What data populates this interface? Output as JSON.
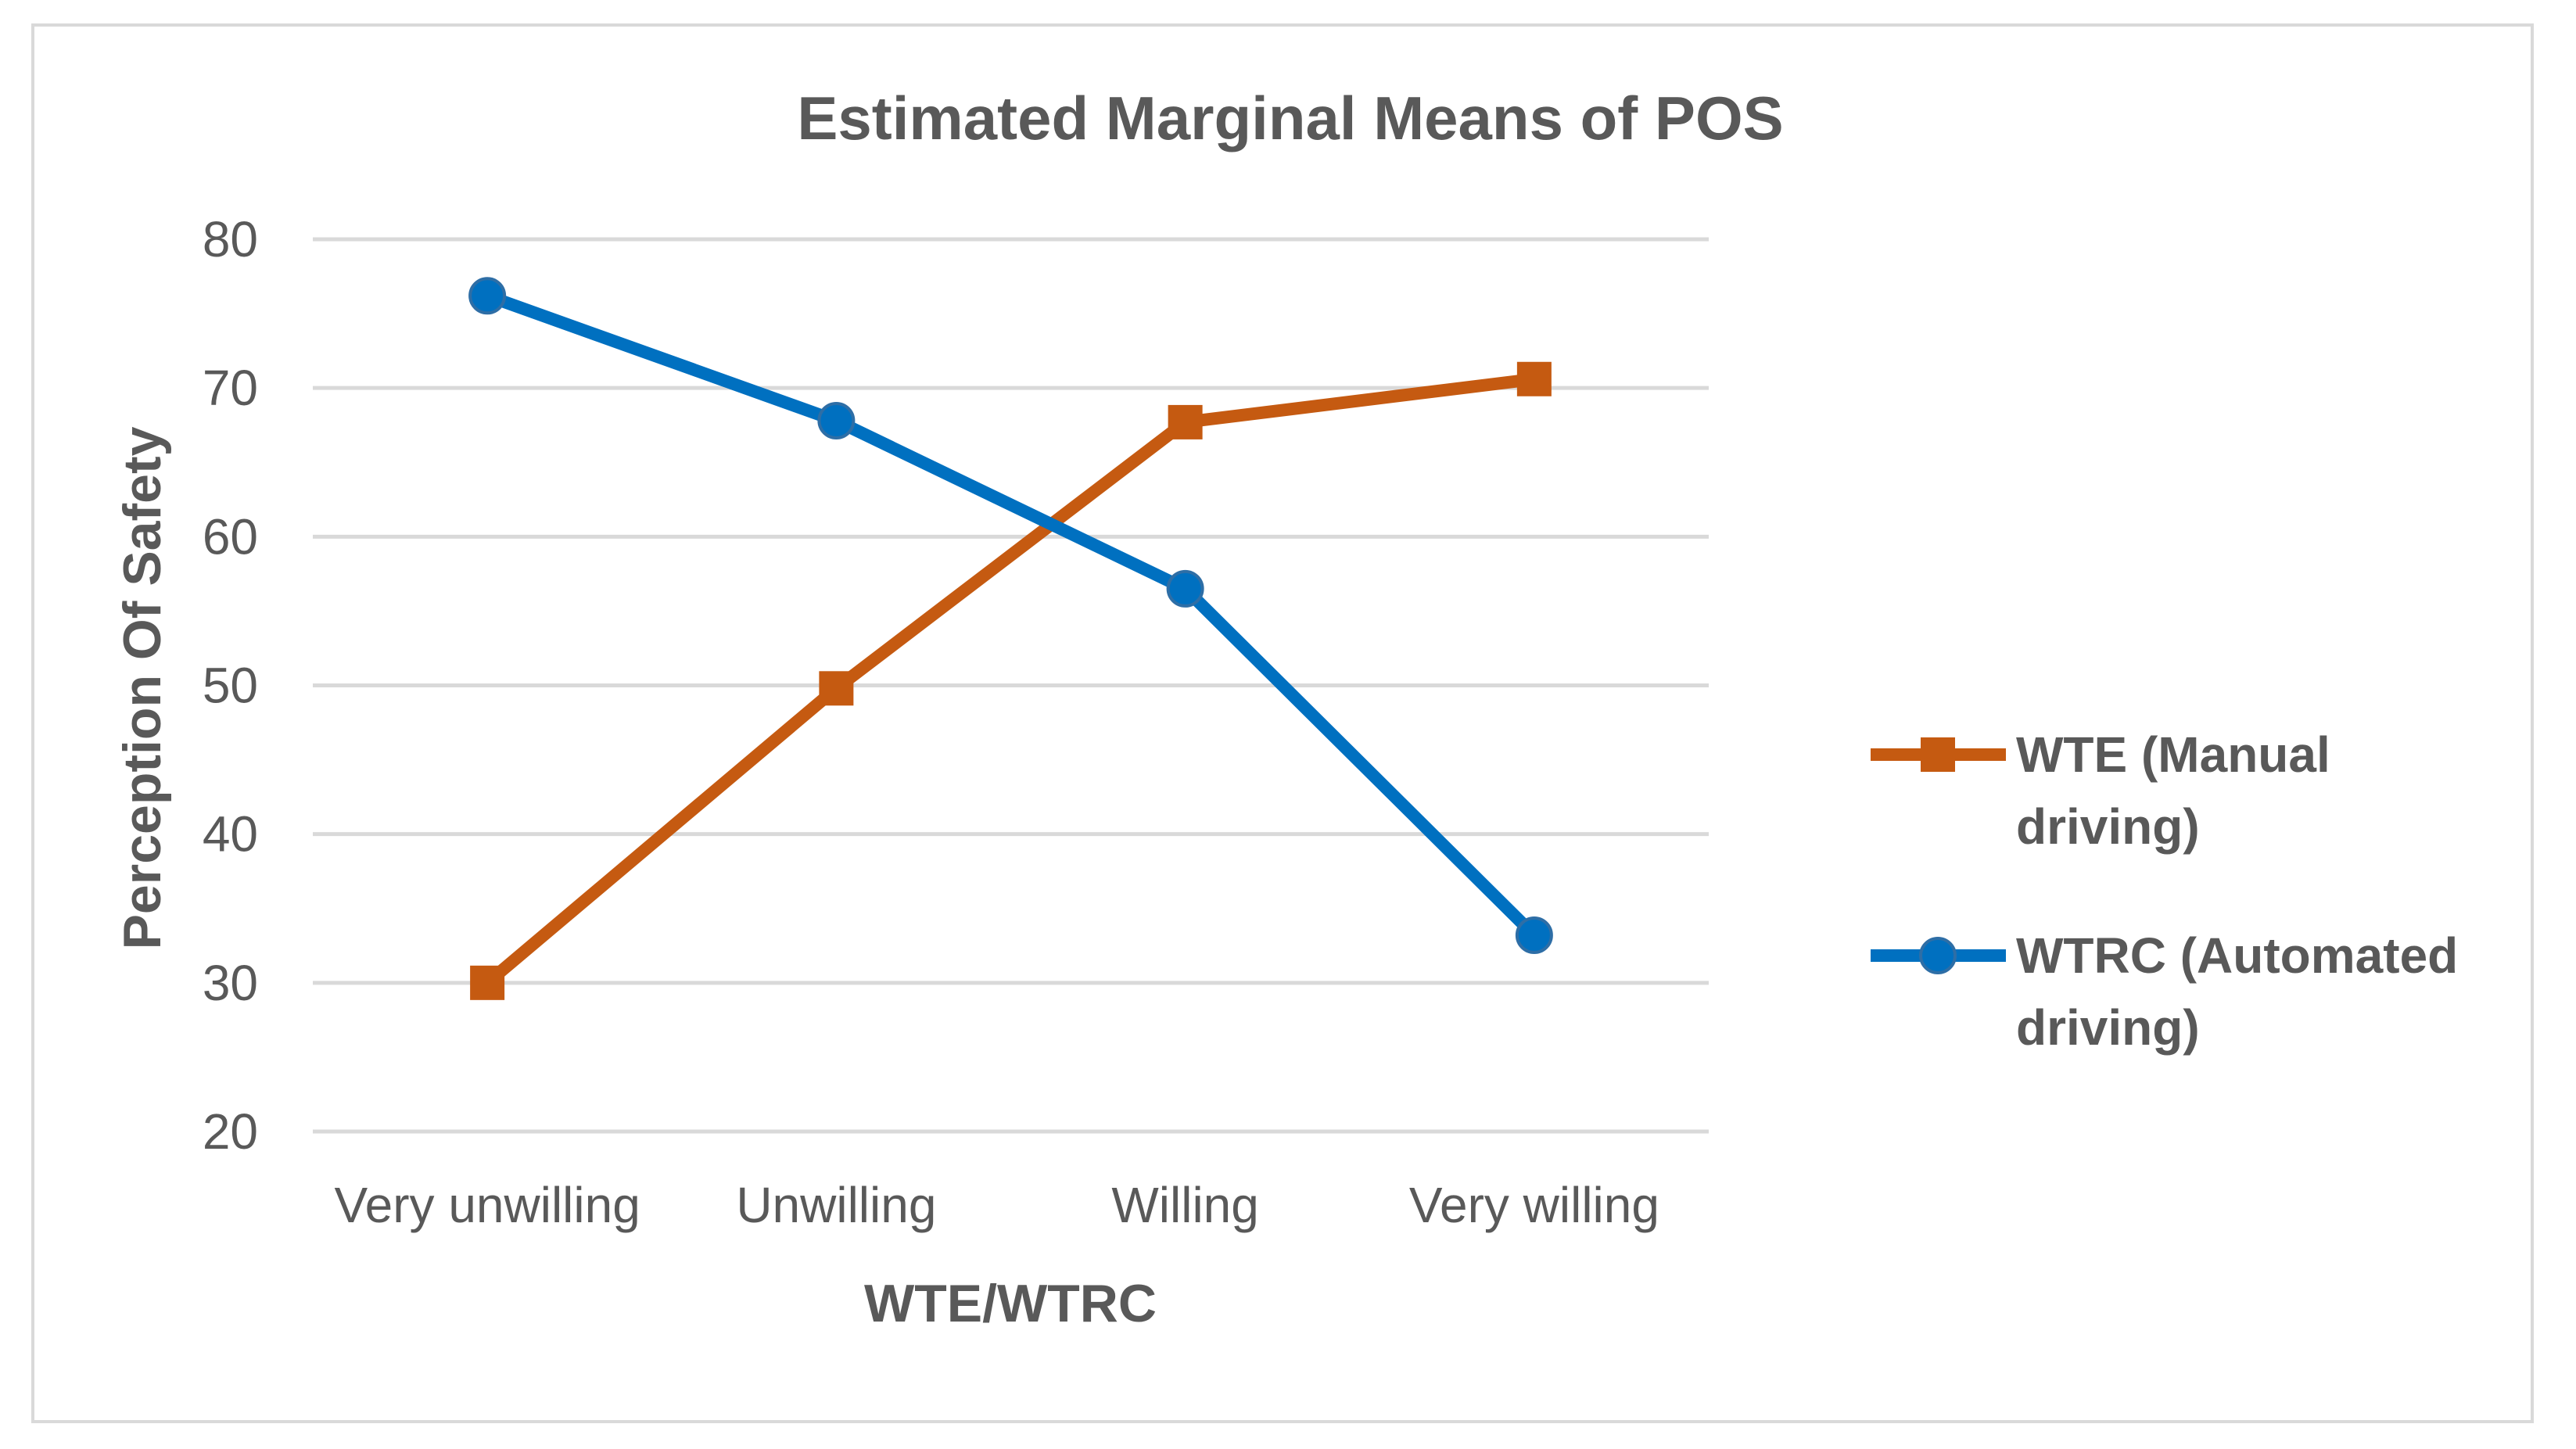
{
  "chart_data": {
    "type": "line",
    "title": "Estimated Marginal Means of POS",
    "xlabel": "WTE/WTRC",
    "ylabel": "Perception Of Safety",
    "categories": [
      "Very unwilling",
      "Unwilling",
      "Willing",
      "Very willing"
    ],
    "ylim": [
      20,
      80
    ],
    "yticks": [
      20,
      30,
      40,
      50,
      60,
      70,
      80
    ],
    "grid": true,
    "legend_position": "right",
    "series": [
      {
        "name": "WTE (Manual driving)",
        "legend_lines": [
          "WTE (Manual",
          "driving)"
        ],
        "color": "#C55A11",
        "marker": "square",
        "values": [
          30.0,
          49.8,
          67.7,
          70.6
        ]
      },
      {
        "name": "WTRC (Automated driving)",
        "legend_lines": [
          "WTRC (Automated",
          "driving)"
        ],
        "color": "#0070C0",
        "marker": "circle",
        "values": [
          76.2,
          67.8,
          56.5,
          33.2
        ]
      }
    ]
  }
}
